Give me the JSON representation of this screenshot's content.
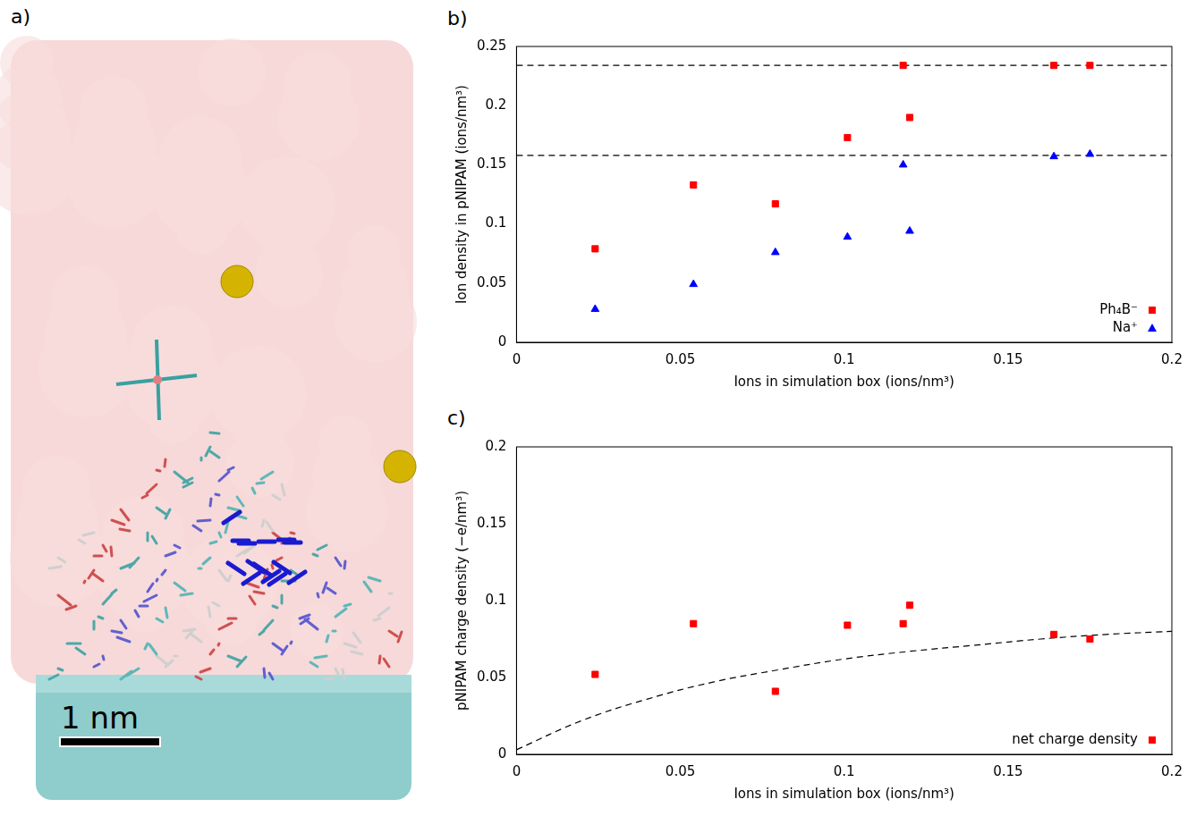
{
  "image_panel": {
    "panel": "a)",
    "scale_bar": "1 nm"
  },
  "chart_data": [
    {
      "type": "scatter",
      "panel": "b)",
      "x_label": "Ions in simulation box (ions/nm³)",
      "y_label": "Ion density in pNIPAM (ions/nm³)",
      "xlim": [
        0,
        0.2
      ],
      "xticks": [
        0,
        0.05,
        0.1,
        0.15,
        0.2
      ],
      "ylim": [
        0,
        0.25
      ],
      "yticks": [
        0,
        0.05,
        0.1,
        0.15,
        0.2,
        0.25
      ],
      "grid": false,
      "legend": "lower right",
      "series": [
        {
          "name": "Ph₄B⁻",
          "color": "#ff0000",
          "marker": "square",
          "x": [
            0.024,
            0.054,
            0.079,
            0.101,
            0.118,
            0.12,
            0.164,
            0.175
          ],
          "values": [
            0.079,
            0.133,
            0.117,
            0.173,
            0.234,
            0.19,
            0.234,
            0.234
          ]
        },
        {
          "name": "Na⁺",
          "color": "#0000ff",
          "marker": "triangle",
          "x": [
            0.024,
            0.054,
            0.079,
            0.101,
            0.118,
            0.12,
            0.164,
            0.175
          ],
          "values": [
            0.028,
            0.049,
            0.076,
            0.089,
            0.15,
            0.094,
            0.157,
            0.159
          ]
        }
      ],
      "hlines": {
        "values": [
          0.234,
          0.158
        ],
        "color": "#000000",
        "line_style": "dashed"
      }
    },
    {
      "type": "scatter",
      "panel": "c)",
      "x_label": "Ions in simulation box (ions/nm³)",
      "y_label": "pNIPAM charge density (−e/nm³)",
      "xlim": [
        0,
        0.2
      ],
      "xticks": [
        0,
        0.05,
        0.1,
        0.15,
        0.2
      ],
      "ylim": [
        0,
        0.2
      ],
      "yticks": [
        0,
        0.05,
        0.1,
        0.15,
        0.2
      ],
      "grid": false,
      "legend": "lower right",
      "series": [
        {
          "name": "net charge density",
          "color": "#ff0000",
          "marker": "square",
          "x": [
            0.024,
            0.054,
            0.079,
            0.101,
            0.118,
            0.12,
            0.164,
            0.175
          ],
          "values": [
            0.052,
            0.085,
            0.041,
            0.084,
            0.085,
            0.097,
            0.078,
            0.075
          ]
        }
      ],
      "fit": {
        "color": "#000000",
        "line_style": "dashed",
        "x": [
          0,
          0.02,
          0.04,
          0.06,
          0.08,
          0.1,
          0.12,
          0.14,
          0.16,
          0.18,
          0.2
        ],
        "values": [
          0.003,
          0.022,
          0.036,
          0.047,
          0.055,
          0.062,
          0.067,
          0.071,
          0.075,
          0.078,
          0.08
        ]
      }
    }
  ]
}
